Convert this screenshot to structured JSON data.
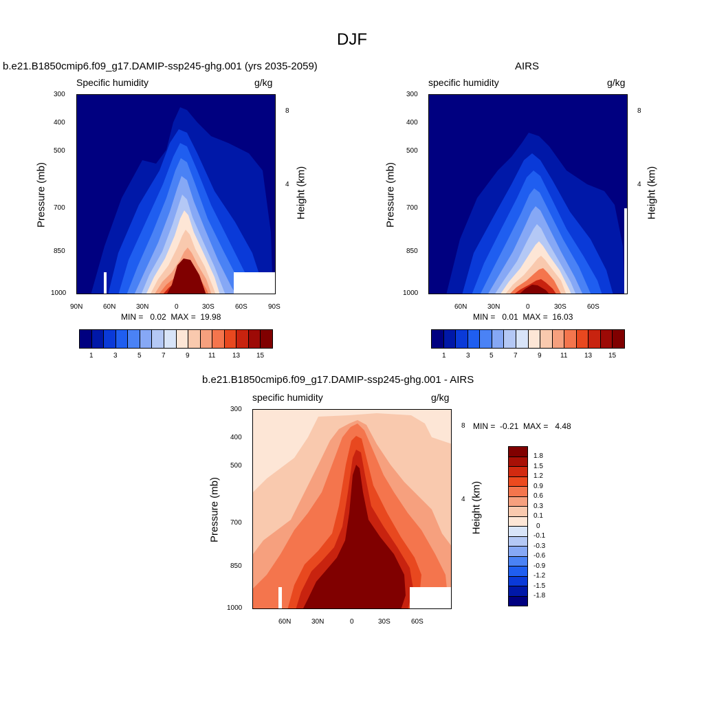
{
  "title": "DJF",
  "chart_data": [
    {
      "type": "heatmap",
      "title": "b.e21.B1850cmip6.f09_g17.DAMIP-ssp245-ghg.001 (yrs 2035-2059)",
      "subtitle_left": "Specific humidity",
      "subtitle_right": "g/kg",
      "ylabel": "Pressure (mb)",
      "ylabel_right": "Height (km)",
      "xticks": [
        "90N",
        "60N",
        "30N",
        "0",
        "30S",
        "60S",
        "90S"
      ],
      "yticks": [
        "300",
        "400",
        "500",
        "700",
        "850",
        "1000"
      ],
      "yticks_right": [
        "8",
        "4"
      ],
      "stats": "MIN =   0.02  MAX =  19.98",
      "colorbar_labels": [
        "1",
        "3",
        "5",
        "7",
        "9",
        "11",
        "13",
        "15"
      ],
      "min": 0.02,
      "max": 19.98
    },
    {
      "type": "heatmap",
      "title": "AIRS",
      "subtitle_left": "specific humidity",
      "subtitle_right": "g/kg",
      "ylabel": "Pressure (mb)",
      "ylabel_right": "Height (km)",
      "xticks": [
        "60N",
        "30N",
        "0",
        "30S",
        "60S"
      ],
      "yticks": [
        "300",
        "400",
        "500",
        "700",
        "850",
        "1000"
      ],
      "yticks_right": [
        "8",
        "4"
      ],
      "stats": "MIN =   0.01  MAX =  16.03",
      "colorbar_labels": [
        "1",
        "3",
        "5",
        "7",
        "9",
        "11",
        "13",
        "15"
      ],
      "min": 0.01,
      "max": 16.03
    },
    {
      "type": "heatmap",
      "title": "b.e21.B1850cmip6.f09_g17.DAMIP-ssp245-ghg.001 - AIRS",
      "subtitle_left": "specific humidity",
      "subtitle_right": "g/kg",
      "ylabel": "Pressure (mb)",
      "ylabel_right": "Height (km)",
      "xticks": [
        "60N",
        "30N",
        "0",
        "30S",
        "60S"
      ],
      "yticks": [
        "300",
        "400",
        "500",
        "700",
        "850",
        "1000"
      ],
      "yticks_right": [
        "8",
        "4"
      ],
      "stats": "MIN =  -0.21  MAX =   4.48",
      "colorbar_labels": [
        "1.8",
        "1.5",
        "1.2",
        "0.9",
        "0.6",
        "0.3",
        "0.1",
        "0",
        "-0.1",
        "-0.3",
        "-0.6",
        "-0.9",
        "-1.2",
        "-1.5",
        "-1.8"
      ],
      "min": -0.21,
      "max": 4.48
    }
  ],
  "colors": {
    "abs_scale": [
      "#000080",
      "#0018a8",
      "#0a3ad8",
      "#1f5ef0",
      "#4a82f5",
      "#86a8f5",
      "#b4c8f5",
      "#d8e4f8",
      "#fde6d6",
      "#f9c9ae",
      "#f6a07e",
      "#f4754d",
      "#e8481f",
      "#c8230f",
      "#9d0a06",
      "#800000"
    ],
    "diff_scale": [
      "#800000",
      "#a81006",
      "#d22a10",
      "#ec4a1f",
      "#f4754d",
      "#f6a07e",
      "#f9c9ae",
      "#fde6d6",
      "#d8e4f8",
      "#b4c8f5",
      "#86a8f5",
      "#4a82f5",
      "#1f5ef0",
      "#0a3ad8",
      "#0018a8",
      "#000080"
    ]
  }
}
